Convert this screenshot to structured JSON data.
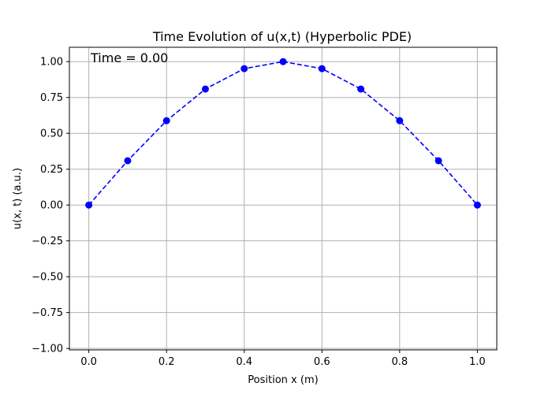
{
  "chart_data": {
    "type": "line",
    "title": "Time Evolution of u(x,t) (Hyperbolic PDE)",
    "xlabel": "Position x (m)",
    "ylabel": "u(x, t) (a.u.)",
    "xlim": [
      -0.05,
      1.05
    ],
    "ylim": [
      -1.01,
      1.1
    ],
    "grid": true,
    "xticks": [
      0.0,
      0.2,
      0.4,
      0.6,
      0.8,
      1.0
    ],
    "xtick_labels": [
      "0.0",
      "0.2",
      "0.4",
      "0.6",
      "0.8",
      "1.0"
    ],
    "yticks": [
      -1.0,
      -0.75,
      -0.5,
      -0.25,
      0.0,
      0.25,
      0.5,
      0.75,
      1.0
    ],
    "ytick_labels": [
      "−1.00",
      "−0.75",
      "−0.50",
      "−0.25",
      "0.00",
      "0.25",
      "0.50",
      "0.75",
      "1.00"
    ],
    "annotation": "Time = 0.00",
    "series": [
      {
        "color": "#0000ff",
        "line_style": "dashed",
        "marker": "circle",
        "x": [
          0.0,
          0.1,
          0.2,
          0.3,
          0.4,
          0.5,
          0.6,
          0.7,
          0.8,
          0.9,
          1.0
        ],
        "y": [
          0.0,
          0.309,
          0.588,
          0.809,
          0.951,
          1.0,
          0.951,
          0.809,
          0.588,
          0.309,
          0.0
        ]
      }
    ]
  }
}
